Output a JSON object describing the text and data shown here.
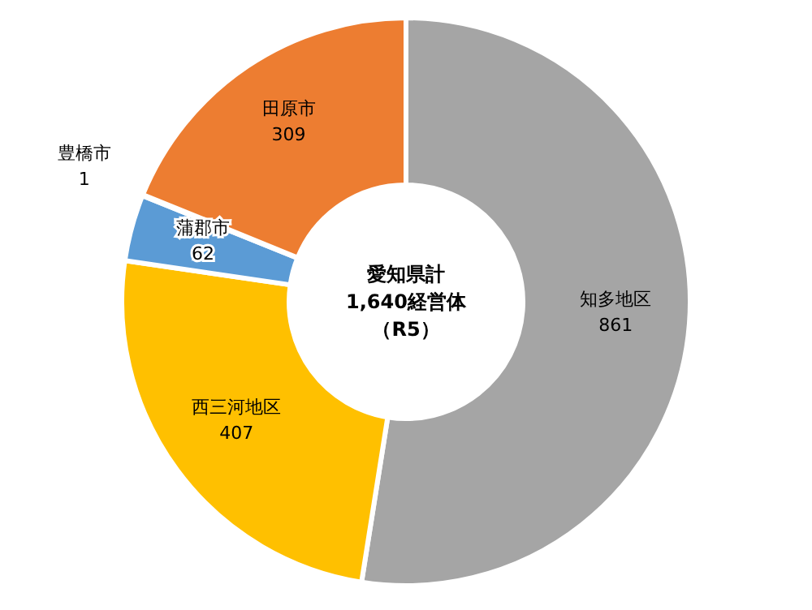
{
  "chart_data": {
    "type": "donut",
    "categories": [
      "知多地区",
      "西三河地区",
      "蒲郡市",
      "豊橋市",
      "田原市"
    ],
    "values": [
      861,
      407,
      62,
      1,
      309
    ],
    "colors": [
      "#a5a5a5",
      "#ffc000",
      "#5b9bd5",
      "#264478",
      "#ed7d31"
    ],
    "data_labels": true,
    "annotations": [
      "愛知県計",
      "1,640経営体",
      "（R5）"
    ]
  }
}
